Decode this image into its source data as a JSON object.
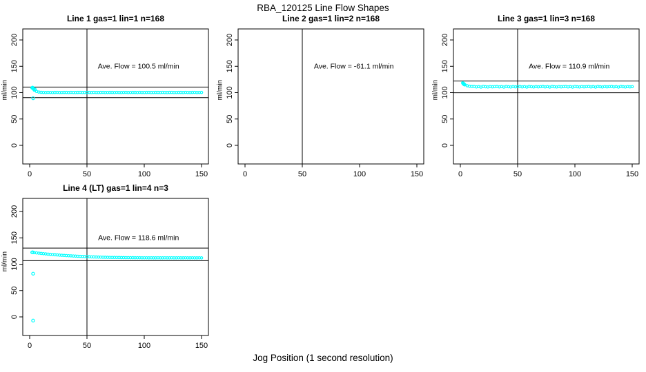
{
  "page": {
    "title": "RBA_120125  Line Flow Shapes",
    "shared_xlabel": "Jog Position (1 second resolution)"
  },
  "colors": {
    "points": "#00FFFF",
    "axis": "#000000",
    "background": "#FFFFFF"
  },
  "chart_data": [
    {
      "type": "scatter",
      "row": 0,
      "col": 0,
      "title": "Line 1 gas=1 lin=1 n=168",
      "annotation": "Ave. Flow =  100.5  ml/min",
      "ave_flow_ml_min": 100.5,
      "n": 168,
      "ylabel": "ml/min",
      "xlim": [
        0,
        150
      ],
      "ylim": [
        0,
        200
      ],
      "xticks": [
        0,
        50,
        100,
        150
      ],
      "yticks": [
        0,
        50,
        100,
        150,
        200
      ],
      "vline_x": 50,
      "hlines": [
        110.6,
        90.5
      ],
      "points": {
        "x_start": 2,
        "x_step": 2,
        "y": [
          109.0,
          104.8,
          102.3,
          101.1,
          100.6,
          100.4,
          100.2,
          100.5,
          100.3,
          100.2,
          100.4,
          100.5,
          100.2,
          100.3,
          100.4,
          100.4,
          100.2,
          100.5,
          100.3,
          100.2,
          100.4,
          100.5,
          100.2,
          100.3,
          100.4,
          100.4,
          100.2,
          100.5,
          100.3,
          100.2,
          100.4,
          100.5,
          100.2,
          100.3,
          100.4,
          100.4,
          100.2,
          100.5,
          100.3,
          100.2,
          100.4,
          100.5,
          100.2,
          100.3,
          100.4,
          100.4,
          100.2,
          100.5,
          100.3,
          100.2,
          100.4,
          100.5,
          100.2,
          100.3,
          100.4,
          100.4,
          100.2,
          100.5,
          100.3,
          100.2,
          100.4,
          100.5,
          100.2,
          100.3,
          100.4,
          100.4,
          100.2,
          100.5,
          100.3,
          100.2,
          100.4,
          100.5,
          100.2,
          100.3,
          100.4
        ]
      },
      "extra_points": [
        [
          2.5,
          109.5
        ],
        [
          3,
          108.2
        ],
        [
          3.5,
          107.0
        ],
        [
          4.5,
          106.0
        ],
        [
          3,
          89.5
        ]
      ]
    },
    {
      "type": "scatter",
      "row": 0,
      "col": 1,
      "title": "Line 2 gas=1 lin=2 n=168",
      "annotation": "Ave. Flow =  -61.1   ml/min",
      "ave_flow_ml_min": -61.1,
      "n": 168,
      "ylabel": "ml/min",
      "xlim": [
        0,
        150
      ],
      "ylim": [
        0,
        200
      ],
      "xticks": [
        0,
        50,
        100,
        150
      ],
      "yticks": [
        0,
        50,
        100,
        150,
        200
      ],
      "vline_x": 50,
      "hlines": [],
      "points": {
        "x_start": 2,
        "x_step": 2,
        "y": []
      },
      "extra_points": []
    },
    {
      "type": "scatter",
      "row": 0,
      "col": 2,
      "title": "Line 3 gas=1 lin=3 n=168",
      "annotation": "Ave. Flow =  110.9  ml/min",
      "ave_flow_ml_min": 110.9,
      "n": 168,
      "ylabel": "ml/min",
      "xlim": [
        0,
        150
      ],
      "ylim": [
        0,
        200
      ],
      "xticks": [
        0,
        50,
        100,
        150
      ],
      "yticks": [
        0,
        50,
        100,
        150,
        200
      ],
      "vline_x": 50,
      "hlines": [
        122.0,
        99.8
      ],
      "points": {
        "x_start": 2,
        "x_step": 2,
        "y": [
          118.5,
          114.8,
          113.0,
          112.2,
          111.8,
          111.8,
          110.9,
          111.5,
          110.6,
          111.9,
          111.2,
          110.8,
          111.6,
          111.0,
          111.4,
          111.8,
          110.9,
          111.5,
          110.6,
          111.9,
          111.2,
          110.8,
          111.6,
          111.0,
          111.4,
          111.8,
          110.9,
          111.5,
          110.6,
          111.9,
          111.2,
          110.8,
          111.6,
          111.0,
          111.4,
          111.8,
          110.9,
          111.5,
          110.6,
          111.9,
          111.2,
          110.8,
          111.6,
          111.0,
          111.4,
          111.8,
          110.9,
          111.5,
          110.6,
          111.9,
          111.2,
          110.8,
          111.6,
          111.0,
          111.4,
          111.8,
          110.9,
          111.5,
          110.6,
          111.9,
          111.2,
          110.8,
          111.6,
          111.0,
          111.4,
          111.8,
          110.9,
          111.5,
          110.6,
          111.9,
          111.2,
          110.8,
          111.6,
          111.0,
          111.4
        ]
      },
      "extra_points": [
        [
          2.5,
          117.5
        ],
        [
          3,
          116.5
        ],
        [
          3.5,
          115.5
        ]
      ]
    },
    {
      "type": "scatter",
      "row": 1,
      "col": 0,
      "title": "Line 4 (LT) gas=1 lin=4 n=3",
      "annotation": "Ave. Flow =  118.6  ml/min",
      "ave_flow_ml_min": 118.6,
      "n": 3,
      "ylabel": "ml/min",
      "xlim": [
        0,
        150
      ],
      "ylim": [
        0,
        200
      ],
      "xticks": [
        0,
        50,
        100,
        150
      ],
      "yticks": [
        0,
        50,
        100,
        150,
        200
      ],
      "vline_x": 50,
      "hlines": [
        130.5,
        106.7
      ],
      "points": {
        "x_start": 2,
        "x_step": 2,
        "y": [
          122.4,
          121.9,
          121.4,
          120.9,
          120.4,
          119.9,
          119.5,
          119.1,
          118.7,
          118.3,
          117.9,
          117.6,
          117.2,
          116.9,
          116.6,
          116.3,
          116.0,
          115.8,
          115.5,
          115.3,
          115.0,
          114.8,
          114.6,
          114.4,
          114.3,
          114.1,
          113.9,
          113.8,
          113.6,
          113.5,
          113.4,
          113.2,
          113.1,
          113.0,
          112.9,
          112.8,
          112.8,
          112.7,
          112.6,
          112.5,
          112.5,
          112.4,
          112.4,
          112.3,
          112.3,
          112.2,
          112.2,
          112.2,
          112.1,
          112.1,
          112.1,
          112.0,
          112.1,
          112.0,
          112.0,
          112.1,
          112.0,
          112.0,
          112.1,
          112.0,
          112.0,
          112.1,
          112.0,
          112.0,
          112.1,
          112.0,
          112.0,
          112.1,
          112.0,
          112.0,
          112.1,
          112.0,
          112.0,
          112.1,
          112.0
        ]
      },
      "extra_points": [
        [
          2.5,
          122.6
        ],
        [
          3,
          82.0
        ],
        [
          3,
          -7.0
        ]
      ]
    }
  ]
}
